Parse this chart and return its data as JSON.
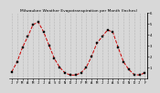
{
  "title": "Milwaukee Weather Evapotranspiration per Month (Inches)",
  "x_labels": [
    "J",
    "F",
    "M",
    "A",
    "M",
    "J",
    "J",
    "A",
    "S",
    "O",
    "N",
    "D",
    "J",
    "F",
    "M",
    "A",
    "M",
    "J",
    "J",
    "A",
    "S",
    "O",
    "N",
    "D",
    "J",
    "F"
  ],
  "y_values": [
    0.6,
    1.5,
    2.8,
    3.8,
    4.9,
    5.1,
    4.2,
    3.0,
    1.8,
    1.0,
    0.5,
    0.3,
    0.3,
    0.5,
    1.0,
    2.0,
    3.2,
    3.8,
    4.4,
    4.2,
    2.8,
    1.5,
    0.8,
    0.35,
    0.3,
    0.5
  ],
  "line_color": "#cc0000",
  "marker_color": "#000000",
  "grid_color": "#999999",
  "bg_color": "#d8d8d8",
  "plot_bg_color": "#d8d8d8",
  "ylim": [
    0,
    6.0
  ],
  "yticks": [
    1,
    2,
    3,
    4,
    5,
    6
  ],
  "title_fontsize": 3.2,
  "tick_fontsize": 2.8,
  "linewidth": 0.7,
  "markersize": 1.5
}
